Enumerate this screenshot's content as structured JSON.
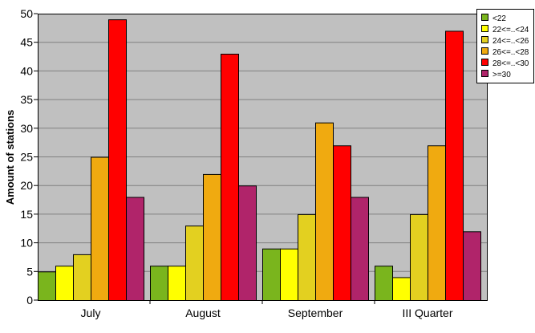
{
  "chart_data": {
    "type": "bar",
    "categories": [
      "July",
      "August",
      "September",
      "III Quarter"
    ],
    "series": [
      {
        "name": "<22",
        "values": [
          5,
          6,
          9,
          6
        ],
        "color": "#7ab51d"
      },
      {
        "name": "22<=..<24",
        "values": [
          6,
          6,
          9,
          4
        ],
        "color": "#ffff00"
      },
      {
        "name": "24<=..<26",
        "values": [
          8,
          13,
          15,
          15
        ],
        "color": "#e3d020"
      },
      {
        "name": "26<=..<28",
        "values": [
          25,
          22,
          31,
          27
        ],
        "color": "#f0aa10"
      },
      {
        "name": "28<=..<30",
        "values": [
          49,
          43,
          27,
          47
        ],
        "color": "#ff0000"
      },
      {
        "name": ">=30",
        "values": [
          18,
          20,
          18,
          12
        ],
        "color": "#b0246a"
      }
    ],
    "ylabel": "Amount of stations",
    "xlabel": "",
    "ylim": [
      0,
      50
    ],
    "yticks": [
      "0",
      "5",
      "10",
      "15",
      "20",
      "25",
      "30",
      "35",
      "40",
      "45",
      "50"
    ],
    "grid": true,
    "legend": "top-right",
    "plot_background": "#c0c0c0"
  }
}
